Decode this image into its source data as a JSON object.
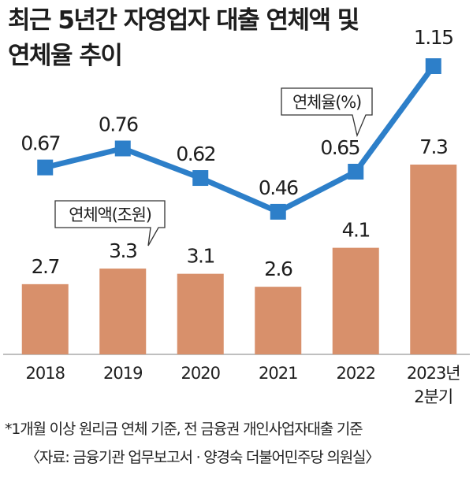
{
  "title_line1": "최근 5년간 자영업자 대출 연체액 및",
  "title_line2": "연체율 추이",
  "footnote": "*1개월 이상 원리금 연체 기준, 전 금융권 개인사업자대출 기준",
  "source": "〈자료: 금융기관 업무보고서 · 양경숙 더불어민주당 의원실〉",
  "colors": {
    "bar": "#d8906b",
    "line": "#2d7fc9",
    "axis": "#999999",
    "text": "#1e1e1e"
  },
  "chart_data": {
    "type": "bar+line",
    "categories": [
      {
        "lines": [
          "2018"
        ]
      },
      {
        "lines": [
          "2019"
        ]
      },
      {
        "lines": [
          "2020"
        ]
      },
      {
        "lines": [
          "2021"
        ]
      },
      {
        "lines": [
          "2022"
        ]
      },
      {
        "lines": [
          "2023년",
          "2분기"
        ]
      }
    ],
    "series": [
      {
        "name": "연체액(조원)",
        "type": "bar",
        "values": [
          2.7,
          3.3,
          3.1,
          2.6,
          4.1,
          7.3
        ],
        "labels": [
          "2.7",
          "3.3",
          "3.1",
          "2.6",
          "4.1",
          "7.3"
        ]
      },
      {
        "name": "연체율(%)",
        "type": "line",
        "values": [
          0.67,
          0.76,
          0.62,
          0.46,
          0.65,
          1.15
        ],
        "labels": [
          "0.67",
          "0.76",
          "0.62",
          "0.46",
          "0.65",
          "1.15"
        ]
      }
    ]
  }
}
